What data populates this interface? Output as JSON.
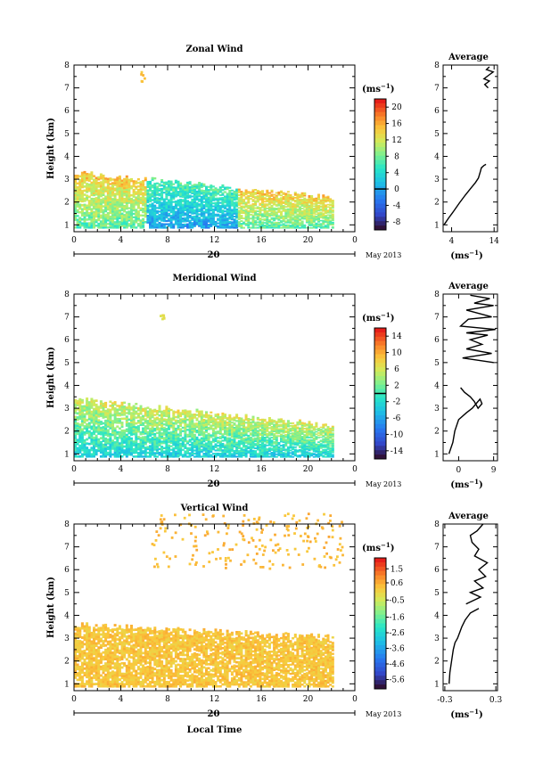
{
  "chart_data": [
    {
      "type": "heatmap",
      "title": "Zonal Wind",
      "ylabel": "Height (km)",
      "xticks": [
        "0",
        "4",
        "8",
        "12",
        "16",
        "20",
        "0"
      ],
      "yticks": [
        "1",
        "2",
        "3",
        "4",
        "5",
        "6",
        "7",
        "8"
      ],
      "xlim": [
        0,
        24
      ],
      "ylim": [
        0.7,
        8
      ],
      "date_label": "20",
      "month_label": "May 2013",
      "colorbar": {
        "unit": "(ms",
        "unit_exp": "−1",
        "ticks": [
          "20",
          "16",
          "12",
          "8",
          "4",
          "0",
          "-4",
          "-8"
        ],
        "values": [
          20,
          16,
          12,
          8,
          4,
          0,
          -4,
          -8
        ],
        "min": -10,
        "max": 22,
        "zero_line": 0
      },
      "field": {
        "base_min": 1.3,
        "base_max": 3.3,
        "bias": 0.3,
        "hi_color_frac": 0.72,
        "low_shift": 0.25,
        "patch": {
          "x": 5.8,
          "y": 7.6,
          "frac": 0.78
        }
      },
      "average": {
        "title": "Average",
        "xticks": [
          "4",
          "14"
        ],
        "xtick_values": [
          4,
          14
        ],
        "xlim": [
          2,
          14.8
        ],
        "unit": "(ms",
        "unit_exp": "−1",
        "profile_x": [
          2.2,
          3.3,
          4.5,
          5.8,
          7.2,
          8.5,
          9.6,
          10.3,
          10.8,
          11.0,
          11.6,
          12.1
        ],
        "profile_y": [
          1.0,
          1.3,
          1.6,
          1.95,
          2.3,
          2.6,
          2.85,
          3.05,
          3.35,
          3.5,
          3.6,
          3.65
        ],
        "profile2_x": [
          12.6,
          11.8,
          12.9,
          11.6,
          12.7,
          13.8,
          12.2,
          12.9
        ],
        "profile2_y": [
          7.0,
          7.15,
          7.3,
          7.4,
          7.55,
          7.7,
          7.8,
          7.92
        ]
      }
    },
    {
      "type": "heatmap",
      "title": "Meridional Wind",
      "ylabel": "Height (km)",
      "xticks": [
        "0",
        "4",
        "8",
        "12",
        "16",
        "20",
        "0"
      ],
      "yticks": [
        "1",
        "2",
        "3",
        "4",
        "5",
        "6",
        "7",
        "8"
      ],
      "xlim": [
        0,
        24
      ],
      "ylim": [
        0.7,
        8
      ],
      "date_label": "20",
      "month_label": "May 2013",
      "colorbar": {
        "unit": "(ms",
        "unit_exp": "−1",
        "ticks": [
          "14",
          "10",
          "6",
          "2",
          "-2",
          "-6",
          "-10",
          "-14"
        ],
        "values": [
          14,
          10,
          6,
          2,
          -2,
          -6,
          -10,
          -14
        ],
        "min": -16,
        "max": 16,
        "zero_line": 0
      },
      "field": {
        "base_min": 1.3,
        "base_max": 3.4,
        "bias": 0.0,
        "hi_color_frac": 0.7,
        "low_shift": 0.3,
        "patch": {
          "x": 7.5,
          "y": 7.0,
          "frac": 0.72
        }
      },
      "average": {
        "title": "Average",
        "xticks": [
          "0",
          "9"
        ],
        "xtick_values": [
          0,
          9
        ],
        "xlim": [
          -4,
          10
        ],
        "unit": "(ms",
        "unit_exp": "−1",
        "profile_x": [
          -2.5,
          -1.5,
          -1.0,
          0.0,
          2.0,
          3.5,
          4.5,
          5.5,
          6.0,
          5.0,
          4.0,
          3.0,
          1.5,
          0.5
        ],
        "profile_y": [
          1.0,
          1.5,
          2.0,
          2.5,
          2.8,
          3.0,
          3.2,
          3.4,
          3.2,
          3.0,
          3.3,
          3.5,
          3.7,
          3.9
        ],
        "profile2_x": [
          9.0,
          1.0,
          8.5,
          2.0,
          6.0,
          3.0,
          7.5,
          2.0,
          9.5,
          0.5,
          2.5,
          8.5,
          2.0,
          9.0,
          4.0,
          8.0,
          3.0
        ],
        "profile2_y": [
          5.0,
          5.2,
          5.4,
          5.6,
          5.8,
          6.0,
          6.2,
          6.3,
          6.45,
          6.6,
          6.9,
          7.0,
          7.3,
          7.5,
          7.6,
          7.8,
          7.95
        ]
      }
    },
    {
      "type": "heatmap",
      "title": "Vertical Wind",
      "ylabel": "Height (km)",
      "xlabel": "Local Time",
      "xticks": [
        "0",
        "4",
        "8",
        "12",
        "16",
        "20",
        "0"
      ],
      "yticks": [
        "1",
        "2",
        "3",
        "4",
        "5",
        "6",
        "7",
        "8"
      ],
      "xlim": [
        0,
        24
      ],
      "ylim": [
        0.7,
        8
      ],
      "date_label": "20",
      "month_label": "May 2013",
      "colorbar": {
        "unit": "(ms",
        "unit_exp": "−1",
        "ticks": [
          "1.5",
          "0.6",
          "-0.5",
          "-1.6",
          "-2.6",
          "-3.6",
          "-4.6",
          "-5.6"
        ],
        "values": [
          1.5,
          0.6,
          -0.5,
          -1.6,
          -2.6,
          -3.6,
          -4.6,
          -5.6
        ],
        "min": -6.2,
        "max": 2.2,
        "zero_line": null
      },
      "field": {
        "base_min": 2.6,
        "base_max": 3.6,
        "bias": 0.0,
        "hi_color_frac": 0.82,
        "low_shift": 0.08,
        "patch": {
          "x": 12.0,
          "y": 7.3,
          "frac": 0.8
        }
      },
      "average": {
        "title": "Average",
        "xticks": [
          "-0.3",
          "0.3"
        ],
        "xtick_values": [
          -0.3,
          0.3
        ],
        "xlim": [
          -0.32,
          0.32
        ],
        "unit": "(ms",
        "unit_exp": "−1",
        "profile_x": [
          -0.25,
          -0.24,
          -0.22,
          -0.2,
          -0.18,
          -0.15,
          -0.12,
          -0.1,
          -0.06,
          -0.02,
          0.0,
          0.05,
          0.1
        ],
        "profile_y": [
          1.0,
          1.5,
          2.0,
          2.5,
          2.8,
          3.0,
          3.3,
          3.5,
          3.8,
          4.0,
          4.1,
          4.2,
          4.3
        ],
        "profile2_x": [
          -0.05,
          0.12,
          0.0,
          0.15,
          0.05,
          0.18,
          0.1,
          0.2,
          0.05,
          0.1,
          0.02,
          0.0,
          0.08,
          0.15
        ],
        "profile2_y": [
          4.5,
          4.8,
          5.0,
          5.2,
          5.5,
          5.7,
          6.0,
          6.3,
          6.6,
          6.9,
          7.2,
          7.5,
          7.7,
          8.0
        ]
      }
    }
  ]
}
